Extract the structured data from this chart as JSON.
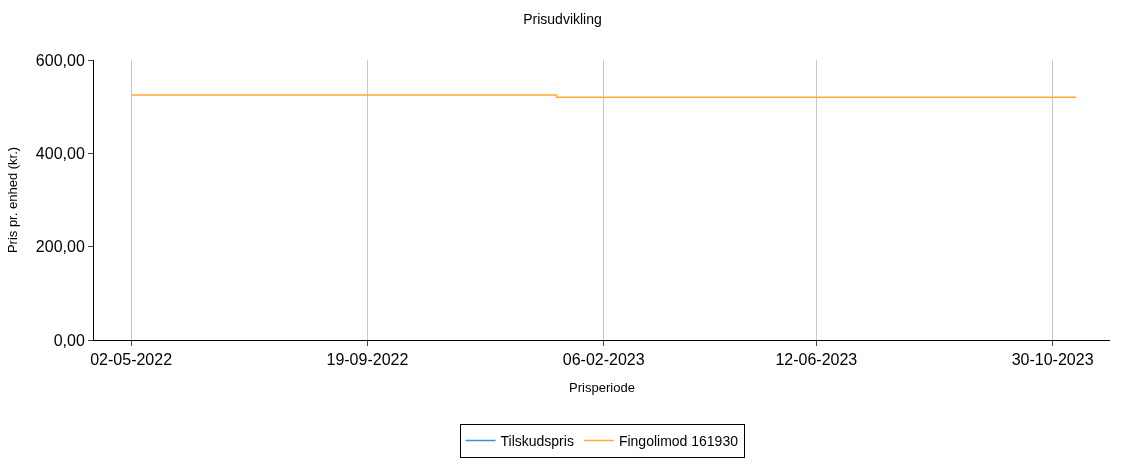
{
  "chart_data": {
    "type": "step",
    "title": "Prisudvikling",
    "xlabel": "Prisperiode",
    "ylabel": "Pris pr. enhed (kr.)",
    "x": [
      "2022-05-02",
      "2023-01-09",
      "2023-11-13"
    ],
    "series": [
      {
        "name": "Tilskudspris",
        "color": "#3c8ce6",
        "values": [
          null,
          null,
          null
        ]
      },
      {
        "name": "Fingolimod 161930",
        "color": "#ffaa33",
        "values": [
          525,
          520,
          520
        ]
      }
    ],
    "xlim": [
      "2022-04-10",
      "2023-12-03"
    ],
    "xticks": [
      {
        "value": "2022-05-02",
        "label": "02-05-2022"
      },
      {
        "value": "2022-09-19",
        "label": "19-09-2022"
      },
      {
        "value": "2023-02-06",
        "label": "06-02-2023"
      },
      {
        "value": "2023-06-12",
        "label": "12-06-2023"
      },
      {
        "value": "2023-10-30",
        "label": "30-10-2023"
      }
    ],
    "ylim": [
      0,
      600
    ],
    "yticks": [
      {
        "value": 0,
        "label": "0,00"
      },
      {
        "value": 200,
        "label": "200,00"
      },
      {
        "value": 400,
        "label": "400,00"
      },
      {
        "value": 600,
        "label": "600,00"
      }
    ],
    "grid": "x",
    "legend": "bottom",
    "line_style": "solid"
  }
}
